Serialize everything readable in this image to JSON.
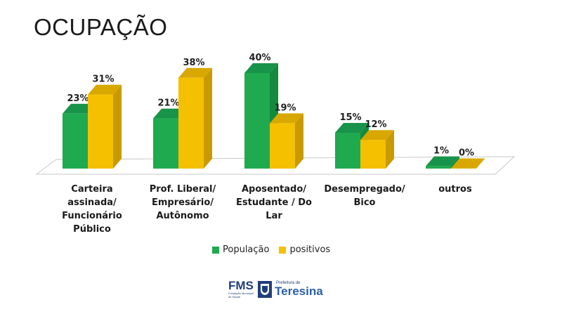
{
  "title": "OCUPAÇÃO",
  "colors": {
    "populacao": "#1faa50",
    "positivos": "#f5c000"
  },
  "chart_data": {
    "type": "bar",
    "title": "OCUPAÇÃO",
    "categories": [
      [
        "Carteira",
        "assinada/",
        "Funcionário",
        "Público"
      ],
      [
        "Prof. Liberal/",
        "Empresário/",
        "Autônomo"
      ],
      [
        "Aposentado/",
        "Estudante / Do",
        "Lar"
      ],
      [
        "Desempregado/",
        "Bico"
      ],
      [
        "outros"
      ]
    ],
    "series": [
      {
        "name": "População",
        "values": [
          23,
          21,
          40,
          15,
          1
        ],
        "labels": [
          "23%",
          "21%",
          "40%",
          "15%",
          "1%"
        ]
      },
      {
        "name": "positivos",
        "values": [
          31,
          38,
          19,
          12,
          0
        ],
        "labels": [
          "31%",
          "38%",
          "19%",
          "12%",
          "0%"
        ]
      }
    ],
    "ylim": [
      0,
      40
    ],
    "grid": false,
    "three_d": true,
    "legend": "bottom"
  },
  "footer": {
    "fms": "FMS",
    "fms_sub": "Fundação Municipal de Saúde",
    "prefeitura_top": "Prefeitura de",
    "prefeitura": "Teresina"
  }
}
